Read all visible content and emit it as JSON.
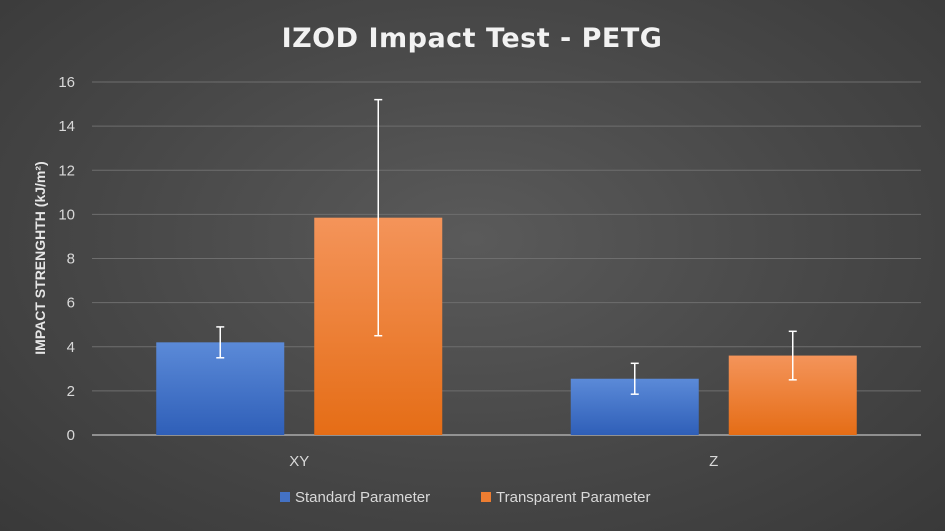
{
  "chart_data": {
    "type": "bar",
    "title": "IZOD Impact Test - PETG",
    "xlabel": "",
    "ylabel": "IMPACT STRENGHTH (kJ/m²)",
    "categories": [
      "XY",
      "Z"
    ],
    "ylim": [
      0,
      16
    ],
    "yticks": [
      0,
      2,
      4,
      6,
      8,
      10,
      12,
      14,
      16
    ],
    "grid": true,
    "legend": "bottom",
    "series": [
      {
        "name": "Standard Parameter",
        "values": [
          4.2,
          2.55
        ],
        "error_low": [
          3.5,
          1.85
        ],
        "error_high": [
          4.9,
          3.25
        ],
        "color": "#4472c4"
      },
      {
        "name": "Transparent Parameter",
        "values": [
          9.85,
          3.6
        ],
        "error_low": [
          4.5,
          2.5
        ],
        "error_high": [
          15.2,
          4.7
        ],
        "color": "#ed7d31"
      }
    ]
  }
}
